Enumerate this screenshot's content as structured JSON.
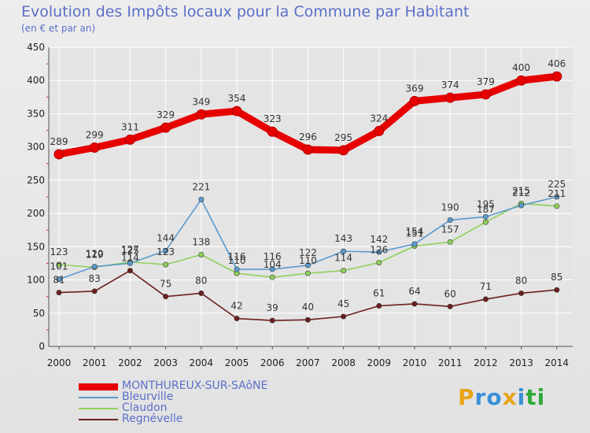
{
  "header": {
    "title": "Evolution des Impôts locaux pour la Commune par Habitant",
    "subtitle": "(en € et par an)"
  },
  "logo": {
    "letters": [
      "P",
      "r",
      "o",
      "x",
      "i",
      "t",
      "i"
    ],
    "colors": [
      "#e8a317",
      "#3a8fd8",
      "#3a8fd8",
      "#e8a317",
      "#3a8fd8",
      "#2eaa3a",
      "#2eaa3a"
    ]
  },
  "colors": {
    "background": "#e6e6e6",
    "grid": "#ffffff",
    "axis": "#555555",
    "title": "#5b6fc8"
  },
  "chart_data": {
    "type": "line",
    "title": "Evolution des Impôts locaux pour la Commune par Habitant",
    "subtitle": "(en € et par an)",
    "xlabel": "",
    "ylabel": "",
    "ylim": [
      0,
      450
    ],
    "yticks": [
      0,
      50,
      100,
      150,
      200,
      250,
      300,
      350,
      400,
      450
    ],
    "x": [
      "2000",
      "2001",
      "2002",
      "2003",
      "2004",
      "2005",
      "2006",
      "2007",
      "2008",
      "2009",
      "2010",
      "2011",
      "2012",
      "2013",
      "2014"
    ],
    "grid": true,
    "legend_position": "bottom-left",
    "series": [
      {
        "name": "MONTHUREUX-SUR-SAôNE",
        "color": "#e60000",
        "values": [
          289,
          299,
          311,
          329,
          349,
          354,
          323,
          296,
          295,
          324,
          369,
          374,
          379,
          400,
          406
        ]
      },
      {
        "name": "Bleurville",
        "color": "#5a9ad0",
        "values": [
          101,
          120,
          125,
          144,
          221,
          116,
          116,
          122,
          143,
          142,
          154,
          190,
          195,
          212,
          225
        ]
      },
      {
        "name": "Claudon",
        "color": "#8fd05a",
        "values": [
          123,
          119,
          127,
          123,
          138,
          110,
          104,
          110,
          114,
          126,
          151,
          157,
          187,
          215,
          211
        ]
      },
      {
        "name": "Regnévelle",
        "color": "#6b1f1f",
        "values": [
          81,
          83,
          114,
          75,
          80,
          42,
          39,
          40,
          45,
          61,
          64,
          60,
          71,
          80,
          85
        ]
      }
    ]
  }
}
